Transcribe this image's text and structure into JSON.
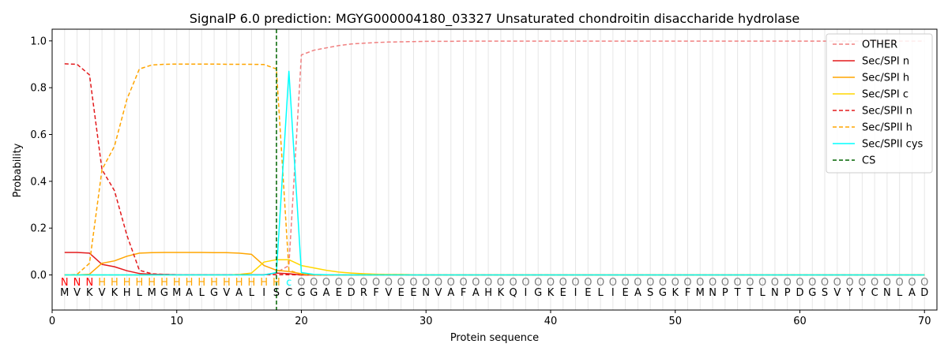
{
  "chart_data": {
    "type": "line",
    "title": "SignalP 6.0 prediction: MGYG000004180_03327 Unsaturated chondroitin disaccharide hydrolase",
    "xlabel": "Protein sequence",
    "ylabel": "Probability",
    "xlim": [
      0,
      71
    ],
    "ylim": [
      -0.15,
      1.05
    ],
    "xticks": [
      0,
      10,
      20,
      30,
      40,
      50,
      60,
      70
    ],
    "yticks": [
      0.0,
      0.2,
      0.4,
      0.6,
      0.8,
      1.0
    ],
    "ytick_labels": [
      "0.0",
      "0.2",
      "0.4",
      "0.6",
      "0.8",
      "1.0"
    ],
    "grid": "vertical lines at each residue",
    "legend_position": "top-right",
    "sequence": [
      "M",
      "V",
      "K",
      "V",
      "K",
      "H",
      "L",
      "M",
      "G",
      "M",
      "A",
      "L",
      "G",
      "V",
      "A",
      "L",
      "I",
      "S",
      "C",
      "G",
      "G",
      "A",
      "E",
      "D",
      "R",
      "F",
      "V",
      "E",
      "E",
      "N",
      "V",
      "A",
      "F",
      "A",
      "H",
      "K",
      "Q",
      "I",
      "G",
      "K",
      "E",
      "I",
      "E",
      "L",
      "I",
      "E",
      "A",
      "S",
      "G",
      "K",
      "F",
      "M",
      "N",
      "P",
      "T",
      "T",
      "L",
      "N",
      "P",
      "D",
      "G",
      "S",
      "V",
      "Y",
      "Y",
      "C",
      "N",
      "L",
      "A",
      "D"
    ],
    "region_labels": [
      "N",
      "N",
      "N",
      "H",
      "H",
      "H",
      "H",
      "H",
      "H",
      "H",
      "H",
      "H",
      "H",
      "H",
      "H",
      "H",
      "H",
      "H",
      "c",
      "O",
      "O",
      "O",
      "O",
      "O",
      "O",
      "O",
      "O",
      "O",
      "O",
      "O",
      "O",
      "O",
      "O",
      "O",
      "O",
      "O",
      "O",
      "O",
      "O",
      "O",
      "O",
      "O",
      "O",
      "O",
      "O",
      "O",
      "O",
      "O",
      "O",
      "O",
      "O",
      "O",
      "O",
      "O",
      "O",
      "O",
      "O",
      "O",
      "O",
      "O",
      "O",
      "O",
      "O",
      "O",
      "O",
      "O",
      "O",
      "O",
      "O",
      "O"
    ],
    "region_colors": {
      "N": "#ff0000",
      "H": "#ffa500",
      "c": "#00ffff",
      "O": "#808080"
    },
    "cleavage_site": 18,
    "series": [
      {
        "name": "OTHER",
        "color": "#f08080",
        "dash": "dashed",
        "values": [
          0.0,
          0.0,
          0.0,
          0.0,
          0.0,
          0.0,
          0.0,
          0.0,
          0.0,
          0.0,
          0.0,
          0.0,
          0.0,
          0.0,
          0.0,
          0.0,
          0.0,
          0.01,
          0.04,
          0.94,
          0.96,
          0.97,
          0.98,
          0.987,
          0.99,
          0.993,
          0.995,
          0.996,
          0.997,
          0.998,
          0.998,
          0.998,
          0.999,
          0.999,
          0.999,
          0.999,
          0.999,
          0.999,
          0.999,
          0.999,
          0.999,
          0.999,
          0.999,
          0.999,
          0.999,
          0.999,
          0.999,
          0.999,
          0.999,
          0.999,
          0.999,
          0.999,
          0.999,
          0.999,
          0.999,
          0.999,
          0.999,
          0.999,
          0.999,
          0.999,
          0.999,
          0.999,
          0.999,
          0.999,
          0.999,
          0.999,
          0.999,
          0.999,
          0.999,
          0.999
        ]
      },
      {
        "name": "Sec/SPI n",
        "color": "#e31a1c",
        "dash": "solid",
        "values": [
          0.096,
          0.096,
          0.093,
          0.045,
          0.035,
          0.018,
          0.006,
          0.003,
          0.002,
          0.001,
          0.001,
          0.001,
          0.001,
          0.001,
          0.001,
          0.001,
          0.001,
          0.008,
          0.005,
          0.0,
          0.0,
          0.0,
          0.0,
          0.0,
          0.0,
          0.0,
          0.0,
          0.0,
          0.0,
          0.0,
          0.0,
          0.0,
          0.0,
          0.0,
          0.0,
          0.0,
          0.0,
          0.0,
          0.0,
          0.0,
          0.0,
          0.0,
          0.0,
          0.0,
          0.0,
          0.0,
          0.0,
          0.0,
          0.0,
          0.0,
          0.0,
          0.0,
          0.0,
          0.0,
          0.0,
          0.0,
          0.0,
          0.0,
          0.0,
          0.0,
          0.0,
          0.0,
          0.0,
          0.0,
          0.0,
          0.0,
          0.0,
          0.0,
          0.0,
          0.0
        ]
      },
      {
        "name": "Sec/SPI h",
        "color": "#ffa500",
        "dash": "solid",
        "values": [
          0.0,
          0.0,
          0.003,
          0.05,
          0.06,
          0.08,
          0.093,
          0.095,
          0.096,
          0.096,
          0.096,
          0.096,
          0.095,
          0.095,
          0.093,
          0.088,
          0.04,
          0.02,
          0.015,
          0.005,
          0.0,
          0.0,
          0.0,
          0.0,
          0.0,
          0.0,
          0.0,
          0.0,
          0.0,
          0.0,
          0.0,
          0.0,
          0.0,
          0.0,
          0.0,
          0.0,
          0.0,
          0.0,
          0.0,
          0.0,
          0.0,
          0.0,
          0.0,
          0.0,
          0.0,
          0.0,
          0.0,
          0.0,
          0.0,
          0.0,
          0.0,
          0.0,
          0.0,
          0.0,
          0.0,
          0.0,
          0.0,
          0.0,
          0.0,
          0.0,
          0.0,
          0.0,
          0.0,
          0.0,
          0.0,
          0.0,
          0.0,
          0.0,
          0.0,
          0.0
        ]
      },
      {
        "name": "Sec/SPI c",
        "color": "#ffd700",
        "dash": "solid",
        "values": [
          0.0,
          0.0,
          0.0,
          0.0,
          0.0,
          0.0,
          0.0,
          0.0,
          0.0,
          0.0,
          0.0,
          0.0,
          0.0,
          0.0,
          0.002,
          0.008,
          0.055,
          0.065,
          0.065,
          0.04,
          0.03,
          0.02,
          0.012,
          0.008,
          0.005,
          0.003,
          0.002,
          0.002,
          0.001,
          0.001,
          0.0,
          0.0,
          0.0,
          0.0,
          0.0,
          0.0,
          0.0,
          0.0,
          0.0,
          0.0,
          0.0,
          0.0,
          0.0,
          0.0,
          0.0,
          0.0,
          0.0,
          0.0,
          0.0,
          0.0,
          0.0,
          0.0,
          0.0,
          0.0,
          0.0,
          0.0,
          0.0,
          0.0,
          0.0,
          0.0,
          0.0,
          0.0,
          0.0,
          0.0,
          0.0,
          0.0,
          0.0,
          0.0,
          0.0,
          0.0
        ]
      },
      {
        "name": "Sec/SPII n",
        "color": "#e31a1c",
        "dash": "dashed",
        "values": [
          0.902,
          0.9,
          0.855,
          0.45,
          0.36,
          0.17,
          0.02,
          0.005,
          0.002,
          0.001,
          0.001,
          0.001,
          0.001,
          0.001,
          0.001,
          0.001,
          0.001,
          0.001,
          0.001,
          0.0,
          0.0,
          0.0,
          0.0,
          0.0,
          0.0,
          0.0,
          0.0,
          0.0,
          0.0,
          0.0,
          0.0,
          0.0,
          0.0,
          0.0,
          0.0,
          0.0,
          0.0,
          0.0,
          0.0,
          0.0,
          0.0,
          0.0,
          0.0,
          0.0,
          0.0,
          0.0,
          0.0,
          0.0,
          0.0,
          0.0,
          0.0,
          0.0,
          0.0,
          0.0,
          0.0,
          0.0,
          0.0,
          0.0,
          0.0,
          0.0,
          0.0,
          0.0,
          0.0,
          0.0,
          0.0,
          0.0,
          0.0,
          0.0,
          0.0,
          0.0
        ]
      },
      {
        "name": "Sec/SPII h",
        "color": "#ffa500",
        "dash": "dashed",
        "values": [
          0.0,
          0.002,
          0.05,
          0.45,
          0.55,
          0.75,
          0.88,
          0.897,
          0.9,
          0.901,
          0.901,
          0.901,
          0.901,
          0.9,
          0.9,
          0.9,
          0.899,
          0.88,
          0.02,
          0.002,
          0.0,
          0.0,
          0.0,
          0.0,
          0.0,
          0.0,
          0.0,
          0.0,
          0.0,
          0.0,
          0.0,
          0.0,
          0.0,
          0.0,
          0.0,
          0.0,
          0.0,
          0.0,
          0.0,
          0.0,
          0.0,
          0.0,
          0.0,
          0.0,
          0.0,
          0.0,
          0.0,
          0.0,
          0.0,
          0.0,
          0.0,
          0.0,
          0.0,
          0.0,
          0.0,
          0.0,
          0.0,
          0.0,
          0.0,
          0.0,
          0.0,
          0.0,
          0.0,
          0.0,
          0.0,
          0.0,
          0.0,
          0.0,
          0.0,
          0.0
        ]
      },
      {
        "name": "Sec/SPII cys",
        "color": "#00ffff",
        "dash": "solid",
        "values": [
          0.0,
          0.0,
          0.0,
          0.0,
          0.0,
          0.0,
          0.0,
          0.0,
          0.0,
          0.0,
          0.0,
          0.0,
          0.0,
          0.0,
          0.0,
          0.0,
          0.0,
          0.01,
          0.87,
          0.01,
          0.002,
          0.001,
          0.0,
          0.0,
          0.0,
          0.0,
          0.0,
          0.0,
          0.0,
          0.0,
          0.0,
          0.0,
          0.0,
          0.0,
          0.0,
          0.0,
          0.0,
          0.0,
          0.0,
          0.0,
          0.0,
          0.0,
          0.0,
          0.0,
          0.0,
          0.0,
          0.0,
          0.0,
          0.0,
          0.0,
          0.0,
          0.0,
          0.0,
          0.0,
          0.0,
          0.0,
          0.0,
          0.0,
          0.0,
          0.0,
          0.0,
          0.0,
          0.0,
          0.0,
          0.0,
          0.0,
          0.0,
          0.0,
          0.0,
          0.0
        ]
      },
      {
        "name": "CS",
        "color": "#006400",
        "dash": "dashed",
        "vertical_at": 18
      }
    ]
  }
}
